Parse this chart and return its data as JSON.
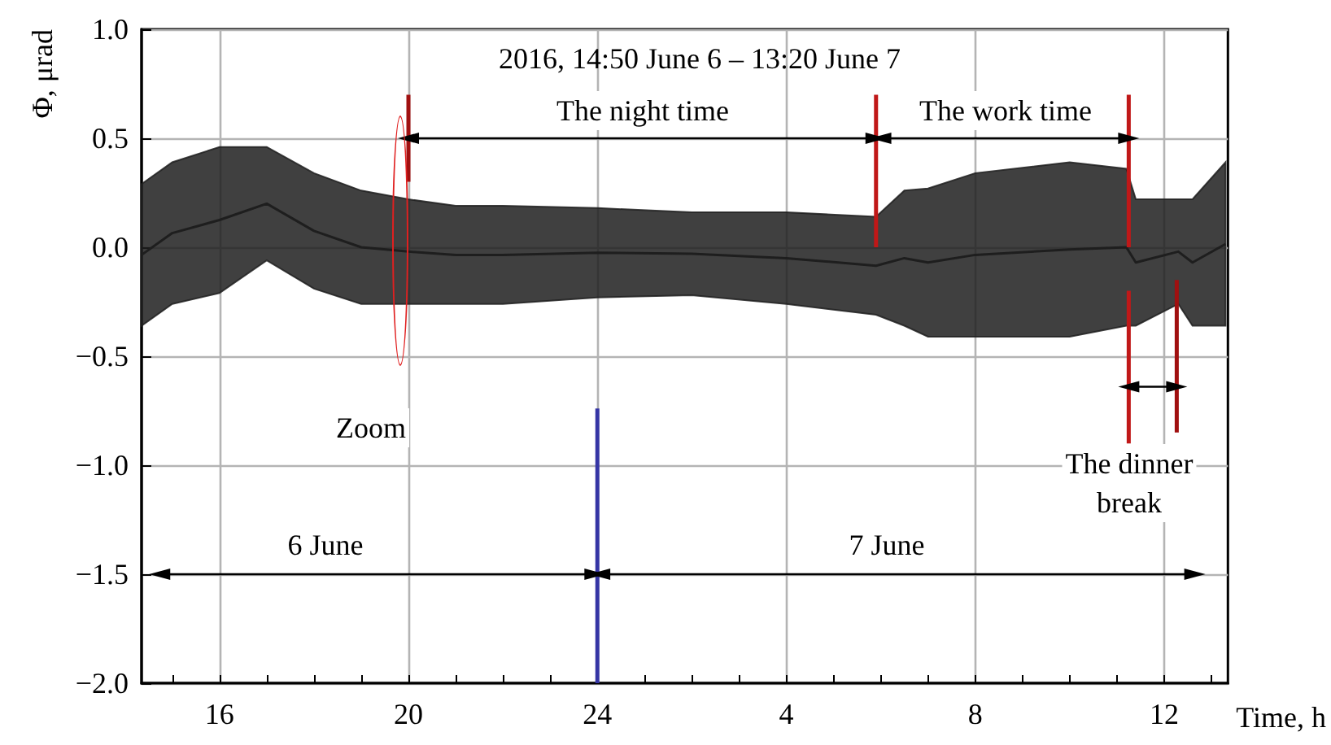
{
  "chart_data": {
    "type": "line",
    "title": "2016, 14:50 June 6 – 13:20 June 7",
    "xlabel": "Time, h",
    "ylabel": "Φ, μrad",
    "xlim": [
      "2016-06-06T14:21",
      "2016-06-07T13:21"
    ],
    "ylim": [
      -2.0,
      1.0
    ],
    "xticks": [
      {
        "value": "2016-06-06T15:00",
        "label": null
      },
      {
        "value": "2016-06-06T16:00",
        "label": "16"
      },
      {
        "value": "2016-06-06T17:00",
        "label": null
      },
      {
        "value": "2016-06-06T18:00",
        "label": null
      },
      {
        "value": "2016-06-06T19:00",
        "label": null
      },
      {
        "value": "2016-06-06T20:00",
        "label": "20"
      },
      {
        "value": "2016-06-06T21:00",
        "label": null
      },
      {
        "value": "2016-06-06T22:00",
        "label": null
      },
      {
        "value": "2016-06-06T23:00",
        "label": null
      },
      {
        "value": "2016-06-07T00:00",
        "label": "24"
      },
      {
        "value": "2016-06-07T01:00",
        "label": null
      },
      {
        "value": "2016-06-07T02:00",
        "label": null
      },
      {
        "value": "2016-06-07T03:00",
        "label": null
      },
      {
        "value": "2016-06-07T04:00",
        "label": "4"
      },
      {
        "value": "2016-06-07T05:00",
        "label": null
      },
      {
        "value": "2016-06-07T06:00",
        "label": null
      },
      {
        "value": "2016-06-07T07:00",
        "label": null
      },
      {
        "value": "2016-06-07T08:00",
        "label": "8"
      },
      {
        "value": "2016-06-07T09:00",
        "label": null
      },
      {
        "value": "2016-06-07T10:00",
        "label": null
      },
      {
        "value": "2016-06-07T11:00",
        "label": null
      },
      {
        "value": "2016-06-07T12:00",
        "label": "12"
      },
      {
        "value": "2016-06-07T13:00",
        "label": null
      }
    ],
    "yticks": [
      {
        "value": -2.0,
        "label": "−2.0"
      },
      {
        "value": -1.5,
        "label": "−1.5"
      },
      {
        "value": -1.0,
        "label": "−1.0"
      },
      {
        "value": -0.5,
        "label": "−0.5"
      },
      {
        "value": 0,
        "label": "0.0"
      },
      {
        "value": 0.5,
        "label": "0.5"
      },
      {
        "value": 1.0,
        "label": "1.0"
      }
    ],
    "grid": true,
    "series": [
      {
        "color": "#1e1e1e",
        "x": [
          "2016-06-06T14:21",
          "2016-06-06T15:00",
          "2016-06-06T16:00",
          "2016-06-06T17:00",
          "2016-06-06T18:00",
          "2016-06-06T19:00",
          "2016-06-06T20:00",
          "2016-06-06T21:00",
          "2016-06-06T22:00",
          "2016-06-07T00:00",
          "2016-06-07T02:00",
          "2016-06-07T04:00",
          "2016-06-07T05:54",
          "2016-06-07T06:30",
          "2016-06-07T07:00",
          "2016-06-07T08:00",
          "2016-06-07T10:00",
          "2016-06-07T11:12",
          "2016-06-07T11:24",
          "2016-06-07T12:18",
          "2016-06-07T12:36",
          "2016-06-07T13:18"
        ],
        "values": [
          -0.035,
          0.065,
          0.125,
          0.2,
          0.075,
          0,
          -0.02,
          -0.035,
          -0.035,
          -0.025,
          -0.03,
          -0.05,
          -0.085,
          -0.05,
          -0.07,
          -0.035,
          -0.01,
          0,
          -0.07,
          -0.02,
          -0.07,
          0.015
        ],
        "lower": [
          -0.36,
          -0.26,
          -0.21,
          -0.06,
          -0.19,
          -0.26,
          -0.26,
          -0.26,
          -0.26,
          -0.23,
          -0.22,
          -0.26,
          -0.31,
          -0.36,
          -0.41,
          -0.41,
          -0.41,
          -0.36,
          -0.36,
          -0.26,
          -0.36,
          -0.36
        ],
        "upper": [
          0.29,
          0.39,
          0.46,
          0.46,
          0.34,
          0.26,
          0.22,
          0.19,
          0.19,
          0.18,
          0.16,
          0.16,
          0.14,
          0.26,
          0.27,
          0.34,
          0.39,
          0.36,
          0.22,
          0.22,
          0.22,
          0.39
        ]
      },
      {
        "type": "line",
        "color": "#a01010",
        "marker": "none",
        "x": [
          "2016-06-06T20:00",
          "2016-06-06T20:00"
        ],
        "values": [
          0.7,
          0.3
        ]
      },
      {
        "type": "line",
        "color": "#c01818",
        "marker": "none",
        "x": [
          "2016-06-07T05:54",
          "2016-06-07T05:54"
        ],
        "values": [
          0.7,
          0.0
        ]
      },
      {
        "type": "line",
        "color": "#c01818",
        "marker": "none",
        "x": [
          "2016-06-07T11:15",
          "2016-06-07T11:15"
        ],
        "values": [
          0.7,
          0.0
        ]
      },
      {
        "type": "line",
        "color": "#c01818",
        "marker": "none",
        "x": [
          "2016-06-07T11:15",
          "2016-06-07T11:15"
        ],
        "values": [
          -0.2,
          -0.9
        ]
      },
      {
        "type": "line",
        "color": "#a01010",
        "marker": "none",
        "x": [
          "2016-06-07T12:16",
          "2016-06-07T12:16"
        ],
        "values": [
          -0.15,
          -0.85
        ]
      },
      {
        "type": "line",
        "color": "#3535a5",
        "marker": "none",
        "x": [
          "2016-06-07T00:00",
          "2016-06-07T00:00"
        ],
        "values": [
          -0.74,
          -2.0
        ]
      },
      {
        "type": "line",
        "color": "#000000",
        "marker": "triangle",
        "x": [
          "2016-06-06T20:00",
          "2016-06-07T05:54"
        ],
        "values": [
          0.5,
          0.5
        ]
      },
      {
        "type": "line",
        "color": "#000000",
        "marker": "triangle",
        "x": [
          "2016-06-07T06:00",
          "2016-06-07T11:15"
        ],
        "values": [
          0.5,
          0.5
        ]
      },
      {
        "type": "line",
        "color": "#000000",
        "marker": "triangle",
        "x": [
          "2016-06-07T11:15",
          "2016-06-07T12:16"
        ],
        "values": [
          -0.64,
          -0.64
        ]
      },
      {
        "type": "line",
        "color": "#000000",
        "marker": "triangle",
        "x": [
          "2016-06-06T14:44",
          "2016-06-06T23:57"
        ],
        "values": [
          -1.5,
          -1.5
        ]
      },
      {
        "type": "line",
        "color": "#000000",
        "marker": "triangle",
        "x": [
          "2016-06-07T00:03",
          "2016-06-07T12:39"
        ],
        "values": [
          -1.5,
          -1.5
        ]
      }
    ],
    "annotations": [
      "The night time",
      "The work time",
      "Zoom",
      "The dinner\nbreak",
      "6 June",
      "7 June"
    ]
  }
}
